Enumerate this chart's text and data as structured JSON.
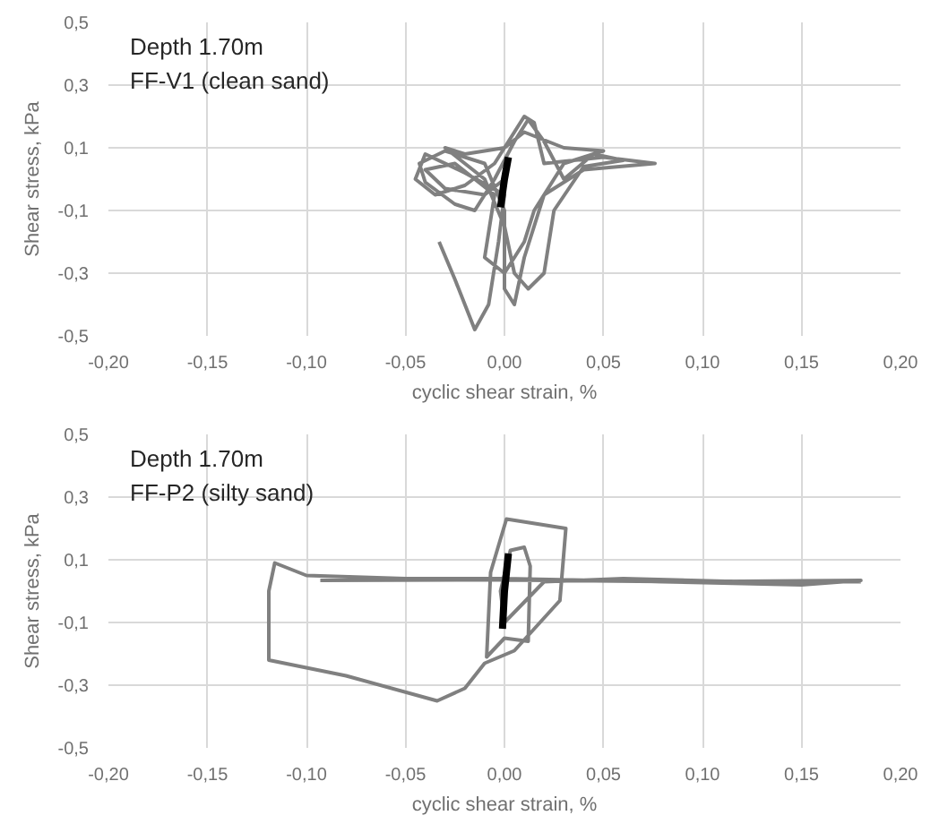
{
  "chart_data": [
    {
      "type": "line",
      "xlabel": "cyclic shear strain, %",
      "ylabel": "Shear stress, kPa",
      "annotations": [
        "Depth 1.70m",
        "FF-V1 (clean sand)"
      ],
      "grid": true,
      "xlim": [
        -0.2,
        0.2
      ],
      "ylim": [
        -0.5,
        0.5
      ],
      "xticks": [
        {
          "value": -0.2,
          "label": "-0,20"
        },
        {
          "value": -0.15,
          "label": "-0,15"
        },
        {
          "value": -0.1,
          "label": "-0,10"
        },
        {
          "value": -0.05,
          "label": "-0,05"
        },
        {
          "value": 0,
          "label": "0,00"
        },
        {
          "value": 0.05,
          "label": "0,05"
        },
        {
          "value": 0.1,
          "label": "0,10"
        },
        {
          "value": 0.15,
          "label": "0,15"
        },
        {
          "value": 0.2,
          "label": "0,20"
        }
      ],
      "yticks": [
        {
          "value": -0.5,
          "label": "-0,5"
        },
        {
          "value": -0.3,
          "label": "-0,3"
        },
        {
          "value": -0.1,
          "label": "-0,1"
        },
        {
          "value": 0.1,
          "label": "0,1"
        },
        {
          "value": 0.3,
          "label": "0,3"
        },
        {
          "value": 0.5,
          "label": "0,5"
        }
      ],
      "series": [
        {
          "color": "#808080",
          "x": [
            -0.033,
            -0.025,
            -0.015,
            -0.008,
            -0.003,
            0.0,
            -0.02,
            -0.04,
            -0.045,
            -0.035,
            -0.02,
            -0.005,
            0.01,
            0.015,
            0.02,
            0.05,
            0.076,
            0.04,
            0.02,
            0.01,
            0.005,
            0.0,
            0.0,
            -0.01,
            -0.03,
            -0.043,
            -0.04,
            -0.025,
            -0.015,
            -0.005,
            0.005,
            0.012,
            0.02,
            0.03,
            0.045,
            0.06,
            0.04,
            0.025,
            0.02,
            0.012,
            0.005,
            0.0,
            -0.01,
            -0.03,
            -0.02,
            0.0,
            0.01,
            0.03,
            0.05,
            0.03,
            0.015,
            0.01,
            0.0,
            -0.01,
            -0.005,
            -0.025,
            -0.04,
            -0.03,
            -0.01,
            0.0
          ],
          "values": [
            -0.2,
            -0.32,
            -0.48,
            -0.4,
            -0.2,
            -0.05,
            0.02,
            0.08,
            0.0,
            -0.05,
            -0.02,
            0.05,
            0.2,
            0.18,
            0.05,
            0.07,
            0.05,
            0.03,
            -0.05,
            -0.25,
            -0.4,
            -0.35,
            -0.1,
            0.05,
            0.09,
            0.05,
            -0.01,
            -0.08,
            -0.1,
            0.0,
            0.12,
            0.19,
            0.12,
            0.0,
            0.08,
            0.06,
            0.04,
            -0.1,
            -0.3,
            -0.35,
            -0.3,
            -0.15,
            0.0,
            0.1,
            0.08,
            0.1,
            0.15,
            0.1,
            0.09,
            0.05,
            -0.1,
            -0.2,
            -0.3,
            -0.25,
            -0.05,
            0.05,
            0.03,
            -0.03,
            -0.05,
            0.0
          ]
        },
        {
          "color": "#000000",
          "x": [
            -0.002,
            0.0,
            0.002
          ],
          "values": [
            -0.09,
            0.0,
            0.07
          ]
        }
      ]
    },
    {
      "type": "line",
      "xlabel": "cyclic shear strain, %",
      "ylabel": "Shear stress, kPa",
      "annotations": [
        "Depth 1.70m",
        "FF-P2 (silty sand)"
      ],
      "grid": true,
      "xlim": [
        -0.2,
        0.2
      ],
      "ylim": [
        -0.5,
        0.5
      ],
      "xticks": [
        {
          "value": -0.2,
          "label": "-0,20"
        },
        {
          "value": -0.15,
          "label": "-0,15"
        },
        {
          "value": -0.1,
          "label": "-0,10"
        },
        {
          "value": -0.05,
          "label": "-0,05"
        },
        {
          "value": 0,
          "label": "0,00"
        },
        {
          "value": 0.05,
          "label": "0,05"
        },
        {
          "value": 0.1,
          "label": "0,10"
        },
        {
          "value": 0.15,
          "label": "0,15"
        },
        {
          "value": 0.2,
          "label": "0,20"
        }
      ],
      "yticks": [
        {
          "value": -0.5,
          "label": "-0,5"
        },
        {
          "value": -0.3,
          "label": "-0,3"
        },
        {
          "value": -0.1,
          "label": "-0,1"
        },
        {
          "value": 0.1,
          "label": "0,1"
        },
        {
          "value": 0.3,
          "label": "0,3"
        },
        {
          "value": 0.5,
          "label": "0,5"
        }
      ],
      "series": [
        {
          "color": "#808080",
          "x": [
            -0.093,
            0.0,
            0.09,
            0.18,
            0.15,
            0.08,
            0.0,
            -0.05,
            -0.1,
            -0.116,
            -0.119,
            -0.119,
            -0.08,
            -0.034,
            -0.02,
            -0.01,
            0.005,
            0.028,
            0.031,
            0.001,
            -0.007,
            -0.009,
            0.0,
            0.012,
            0.013,
            0.01,
            0.003,
            -0.002,
            0.0,
            0.02,
            0.06,
            0.12,
            0.18
          ],
          "values": [
            0.034,
            0.036,
            0.03,
            0.034,
            0.02,
            0.03,
            0.04,
            0.04,
            0.05,
            0.09,
            0.0,
            -0.22,
            -0.27,
            -0.35,
            -0.31,
            -0.23,
            -0.19,
            -0.03,
            0.2,
            0.23,
            0.06,
            -0.21,
            -0.15,
            -0.16,
            0.08,
            0.14,
            0.13,
            0.0,
            -0.1,
            0.03,
            0.04,
            0.03,
            0.03
          ]
        },
        {
          "color": "#000000",
          "x": [
            -0.001,
            0.0,
            0.002
          ],
          "values": [
            -0.12,
            0.0,
            0.12
          ]
        }
      ]
    }
  ]
}
